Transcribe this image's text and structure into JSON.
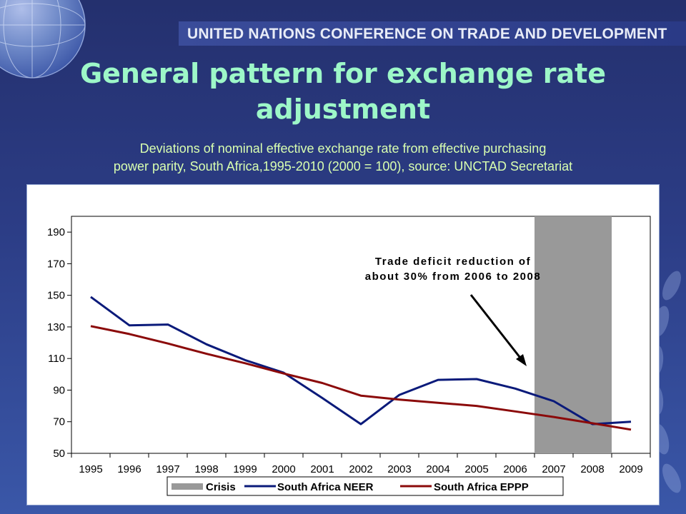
{
  "header": {
    "banner_text": "UNITED NATIONS CONFERENCE ON TRADE AND DEVELOPMENT",
    "title_line1": "General pattern for exchange rate",
    "title_line2": "adjustment",
    "subtitle_line1": "Deviations of nominal effective exchange rate from effective purchasing",
    "subtitle_line2": "power parity, South Africa,1995-2010 (2000 = 100), source: UNCTAD Secretariat"
  },
  "chart_data": {
    "type": "line",
    "x": [
      "1995",
      "1996",
      "1997",
      "1998",
      "1999",
      "2000",
      "2001",
      "2002",
      "2003",
      "2004",
      "2005",
      "2006",
      "2007",
      "2008",
      "2009"
    ],
    "ylim": [
      50,
      200
    ],
    "yticks": [
      50,
      70,
      90,
      110,
      130,
      150,
      170,
      190
    ],
    "shaded_region": {
      "name": "Crisis",
      "from": "2006.5",
      "to": "2008.5",
      "color": "#999999"
    },
    "series": [
      {
        "name": "South Africa NEER",
        "color": "#0a1a7a",
        "points": [
          [
            1995,
            149
          ],
          [
            1996,
            131
          ],
          [
            1997,
            131.5
          ],
          [
            1998,
            119
          ],
          [
            1999,
            109
          ],
          [
            2000,
            101
          ],
          [
            2001,
            85
          ],
          [
            2002,
            68.5
          ],
          [
            2003,
            87
          ],
          [
            2004,
            96.5
          ],
          [
            2005,
            97
          ],
          [
            2006,
            91
          ],
          [
            2007,
            83
          ],
          [
            2008,
            68.5
          ],
          [
            2009,
            70
          ]
        ]
      },
      {
        "name": "South Africa EPPP",
        "color": "#8b0a0a",
        "points": [
          [
            1995,
            130.5
          ],
          [
            1996,
            125.5
          ],
          [
            1997,
            119.5
          ],
          [
            1998,
            113
          ],
          [
            1999,
            107
          ],
          [
            2000,
            100.5
          ],
          [
            2001,
            94.5
          ],
          [
            2002,
            86.5
          ],
          [
            2003,
            84
          ],
          [
            2004,
            82
          ],
          [
            2005,
            80
          ],
          [
            2006,
            76.5
          ],
          [
            2007,
            73
          ],
          [
            2008,
            69
          ],
          [
            2009,
            65
          ]
        ]
      }
    ],
    "annotation": {
      "line1": "Trade deficit reduction of",
      "line2": "about 30% from 2006 to 2008"
    },
    "legend": [
      "Crisis",
      "South Africa NEER",
      "South Africa EPPP"
    ],
    "legend_position": "bottom",
    "grid": false
  }
}
